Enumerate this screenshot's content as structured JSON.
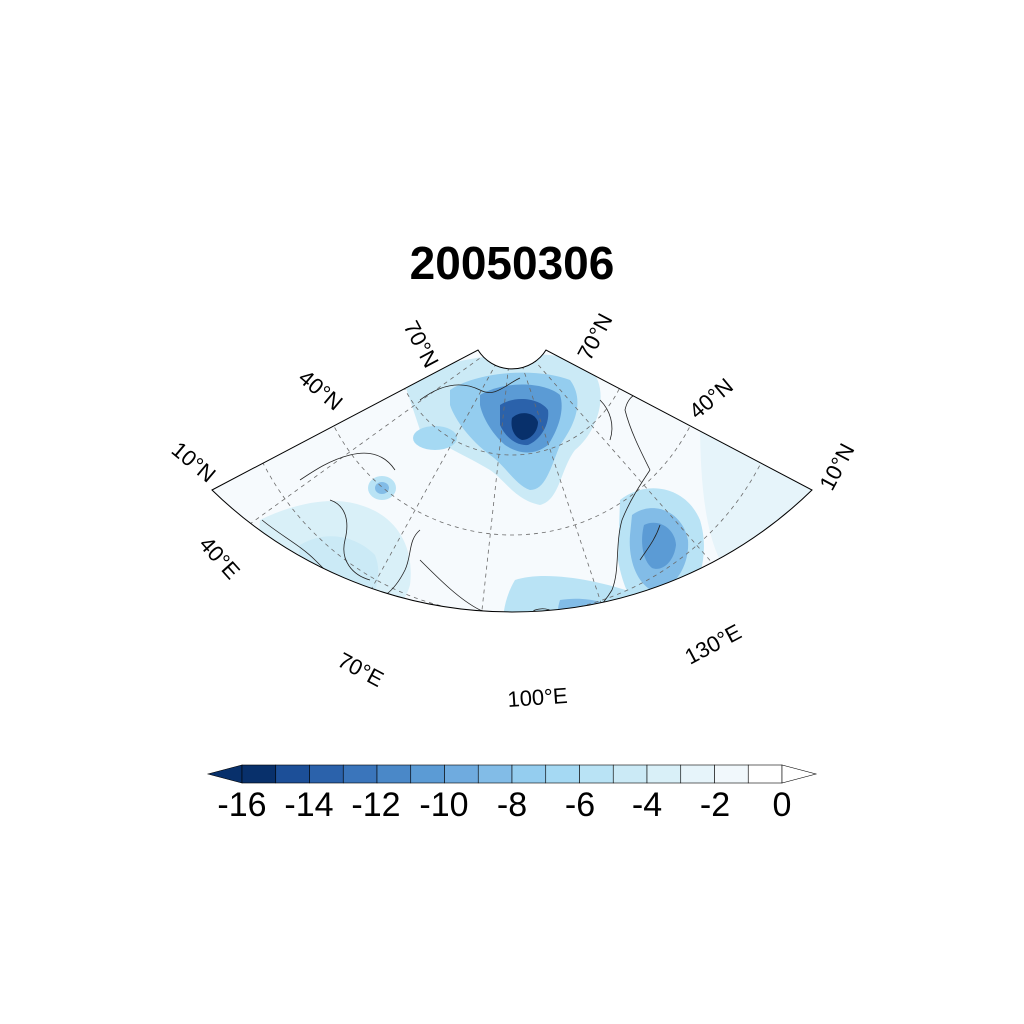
{
  "title": "20050306",
  "map": {
    "projection": "Lambert conic (sector)",
    "lat_labels": [
      "70°N",
      "40°N",
      "10°N",
      "70°N",
      "40°N",
      "10°N"
    ],
    "lon_labels": [
      "40°E",
      "70°E",
      "100°E",
      "130°E"
    ],
    "gridlines": "dashed",
    "coastlines": true
  },
  "colorbar": {
    "labels": [
      "-16",
      "-14",
      "-12",
      "-10",
      "-8",
      "-6",
      "-4",
      "-2",
      "0"
    ],
    "levels": [
      -16,
      -15,
      -14,
      -13,
      -12,
      -11,
      -10,
      -9,
      -8,
      -7,
      -6,
      -5,
      -4,
      -3,
      -2,
      -1,
      0
    ],
    "colors": [
      "#08306b",
      "#1c4f98",
      "#2b62ab",
      "#3a75bb",
      "#4a88c8",
      "#5b9bd5",
      "#6fabdf",
      "#82bce7",
      "#94cdef",
      "#a5d9f3",
      "#b9e3f5",
      "#cbeaf6",
      "#d9f0f8",
      "#e6f4fa",
      "#f1f8fc",
      "#ffffff"
    ],
    "below_color": "#08306b",
    "above_color": "#ffffff"
  }
}
